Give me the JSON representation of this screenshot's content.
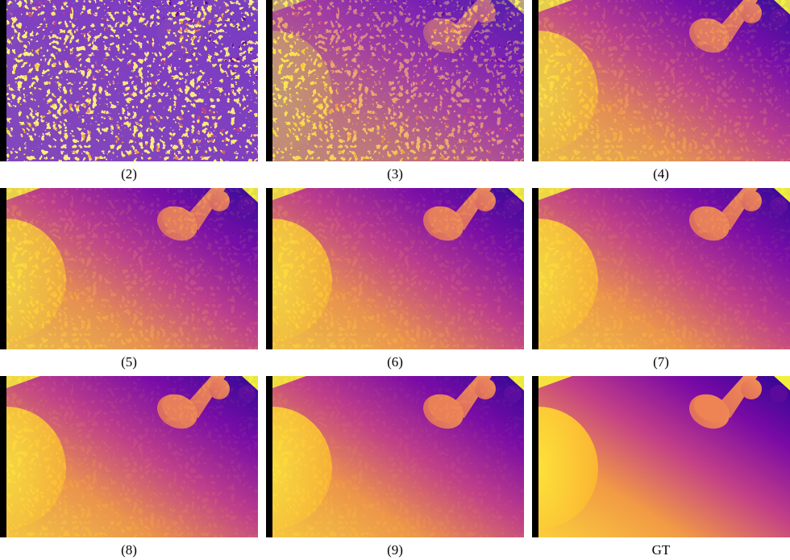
{
  "panels": [
    {
      "caption": "(2)"
    },
    {
      "caption": "(3)"
    },
    {
      "caption": "(4)"
    },
    {
      "caption": "(5)"
    },
    {
      "caption": "(6)"
    },
    {
      "caption": "(7)"
    },
    {
      "caption": "(8)"
    },
    {
      "caption": "(9)"
    },
    {
      "caption": "GT"
    }
  ]
}
